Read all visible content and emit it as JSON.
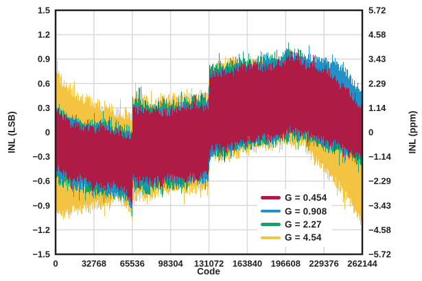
{
  "chart_data": {
    "type": "area",
    "title": "",
    "xlabel": "Code",
    "ylabel_left": "INL (LSB)",
    "ylabel_right": "INL (ppm)",
    "xlim": [
      0,
      262144
    ],
    "ylim_left": [
      -1.5,
      1.5
    ],
    "ylim_right": [
      -5.72,
      5.72
    ],
    "grid": true,
    "legend_position": "lower-right-inside",
    "x_ticks": [
      0,
      32768,
      65536,
      98304,
      131072,
      163840,
      196608,
      229376,
      262144
    ],
    "x_tick_labels": [
      "0",
      "32768",
      "65536",
      "98304",
      "131072",
      "163840",
      "196608",
      "229376",
      "262144"
    ],
    "y_left_ticks": [
      1.5,
      1.2,
      0.9,
      0.6,
      0.3,
      0,
      -0.3,
      -0.6,
      -0.9,
      -1.2,
      -1.5
    ],
    "y_left_tick_labels": [
      "1.5",
      "1.2",
      "0.9",
      "0.6",
      "0.3",
      "0",
      "−0.3",
      "−0.6",
      "−0.9",
      "−1.2",
      "−1.5"
    ],
    "y_right_tick_labels": [
      "5.72",
      "4.58",
      "3.43",
      "2.29",
      "1.14",
      "0",
      "−1.14",
      "−2.29",
      "−3.43",
      "−4.58",
      "−5.72"
    ],
    "colors": {
      "grid": "#d9d9d9",
      "axis": "#231f20",
      "text": "#231f20",
      "background": "#ffffff"
    },
    "envelope_x": [
      0,
      8192,
      16384,
      24576,
      32768,
      40960,
      49152,
      57344,
      61440,
      65535,
      65536,
      81920,
      98304,
      114688,
      131071,
      131072,
      147456,
      163840,
      180224,
      196607,
      196608,
      212992,
      229376,
      245760,
      262143
    ],
    "series": [
      {
        "name": "G = 0.454",
        "color": "#ae1c45",
        "noise": 0.055,
        "seed": 11,
        "top": [
          0.26,
          0.16,
          0.1,
          0.06,
          0.05,
          0.06,
          0.01,
          -0.02,
          -0.03,
          -0.04,
          0.3,
          0.24,
          0.27,
          0.3,
          0.33,
          0.72,
          0.76,
          0.8,
          0.83,
          0.85,
          0.92,
          0.86,
          0.76,
          0.55,
          0.3
        ],
        "bottom": [
          -0.42,
          -0.52,
          -0.57,
          -0.6,
          -0.62,
          -0.65,
          -0.67,
          -0.69,
          -0.71,
          -0.92,
          -0.56,
          -0.61,
          -0.57,
          -0.55,
          -0.53,
          -0.23,
          -0.18,
          -0.12,
          -0.07,
          -0.03,
          0.0,
          -0.02,
          -0.1,
          -0.18,
          -0.3
        ]
      },
      {
        "name": "G = 0.908",
        "color": "#2191c9",
        "noise": 0.055,
        "seed": 22,
        "top": [
          0.28,
          0.18,
          0.12,
          0.08,
          0.07,
          0.08,
          0.03,
          0.0,
          -0.01,
          -0.02,
          0.32,
          0.26,
          0.29,
          0.32,
          0.35,
          0.74,
          0.78,
          0.82,
          0.85,
          0.87,
          0.99,
          0.93,
          0.88,
          0.75,
          0.5
        ],
        "bottom": [
          -0.48,
          -0.58,
          -0.63,
          -0.65,
          -0.67,
          -0.7,
          -0.72,
          -0.74,
          -0.76,
          -0.94,
          -0.6,
          -0.65,
          -0.6,
          -0.58,
          -0.56,
          -0.25,
          -0.2,
          -0.14,
          -0.09,
          -0.05,
          -0.02,
          -0.04,
          -0.12,
          -0.21,
          -0.32
        ]
      },
      {
        "name": "G = 2.27",
        "color": "#14a36a",
        "noise": 0.06,
        "seed": 33,
        "top": [
          0.32,
          0.22,
          0.15,
          0.11,
          0.1,
          0.11,
          0.06,
          0.04,
          0.03,
          0.02,
          0.4,
          0.33,
          0.36,
          0.39,
          0.42,
          0.79,
          0.83,
          0.88,
          0.91,
          0.91,
          1.0,
          0.91,
          0.8,
          0.6,
          0.32
        ],
        "bottom": [
          -0.54,
          -0.64,
          -0.69,
          -0.71,
          -0.73,
          -0.76,
          -0.78,
          -0.8,
          -0.82,
          -0.97,
          -0.66,
          -0.71,
          -0.65,
          -0.63,
          -0.61,
          -0.29,
          -0.24,
          -0.17,
          -0.12,
          -0.08,
          -0.05,
          -0.07,
          -0.16,
          -0.27,
          -0.4
        ]
      },
      {
        "name": "G = 4.54",
        "color": "#f5c342",
        "noise": 0.07,
        "seed": 44,
        "top": [
          0.78,
          0.58,
          0.45,
          0.38,
          0.34,
          0.32,
          0.27,
          0.23,
          0.21,
          0.2,
          0.44,
          0.37,
          0.4,
          0.42,
          0.44,
          0.8,
          0.83,
          0.87,
          0.89,
          0.89,
          0.94,
          0.88,
          0.76,
          0.55,
          0.27
        ],
        "bottom": [
          -0.98,
          -1.03,
          -0.95,
          -0.92,
          -0.9,
          -0.88,
          -0.86,
          -0.88,
          -0.9,
          -1.02,
          -0.76,
          -0.78,
          -0.7,
          -0.68,
          -0.64,
          -0.33,
          -0.28,
          -0.21,
          -0.16,
          -0.11,
          -0.1,
          -0.15,
          -0.45,
          -0.75,
          -1.08
        ]
      }
    ],
    "draw_order": [
      3,
      2,
      1,
      0
    ]
  }
}
